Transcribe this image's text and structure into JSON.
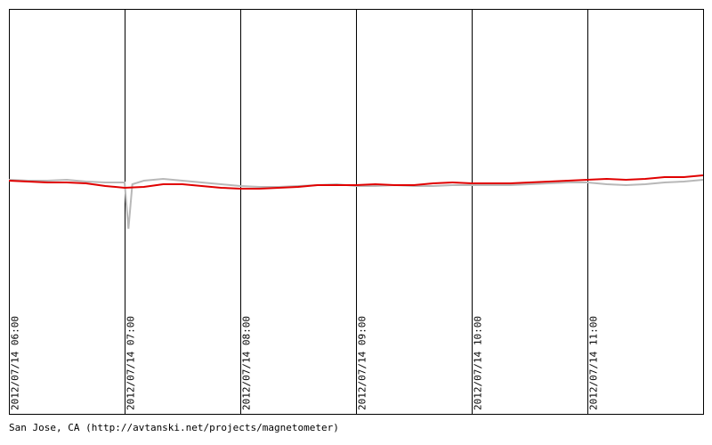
{
  "chart_data": {
    "type": "line",
    "xlim": [
      0,
      360
    ],
    "xticks": [
      {
        "value": 0,
        "label": "2012/07/14 06:00"
      },
      {
        "value": 60,
        "label": "2012/07/14 07:00"
      },
      {
        "value": 120,
        "label": "2012/07/14 08:00"
      },
      {
        "value": 180,
        "label": "2012/07/14 09:00"
      },
      {
        "value": 240,
        "label": "2012/07/14 10:00"
      },
      {
        "value": 300,
        "label": "2012/07/14 11:00"
      }
    ],
    "ylim": [
      0,
      455
    ],
    "grid": true,
    "series": [
      {
        "color": "#b8b8b8",
        "x": [
          0,
          10,
          20,
          30,
          40,
          50,
          60,
          62,
          64,
          70,
          80,
          90,
          100,
          110,
          120,
          130,
          140,
          150,
          160,
          170,
          180,
          190,
          200,
          210,
          220,
          230,
          240,
          250,
          260,
          270,
          280,
          290,
          300,
          310,
          320,
          330,
          340,
          350,
          360
        ],
        "values": [
          263,
          262,
          262,
          263,
          261,
          260,
          260,
          208,
          258,
          262,
          264,
          262,
          260,
          258,
          256,
          255,
          255,
          256,
          257,
          258,
          256,
          256,
          257,
          256,
          256,
          257,
          257,
          257,
          257,
          258,
          259,
          260,
          260,
          258,
          257,
          258,
          260,
          261,
          263
        ]
      },
      {
        "color": "#e00000",
        "x": [
          0,
          10,
          20,
          30,
          40,
          50,
          60,
          70,
          80,
          90,
          100,
          110,
          120,
          130,
          140,
          150,
          160,
          170,
          180,
          190,
          200,
          210,
          220,
          230,
          240,
          250,
          260,
          270,
          280,
          290,
          300,
          310,
          320,
          330,
          340,
          350,
          360
        ],
        "values": [
          262,
          261,
          260,
          260,
          259,
          256,
          254,
          255,
          258,
          258,
          256,
          254,
          253,
          253,
          254,
          255,
          257,
          257,
          257,
          258,
          257,
          257,
          259,
          260,
          259,
          259,
          259,
          260,
          261,
          262,
          263,
          264,
          263,
          264,
          266,
          266,
          268
        ]
      }
    ],
    "footer": "San Jose, CA (http://avtanski.net/projects/magnetometer)"
  }
}
